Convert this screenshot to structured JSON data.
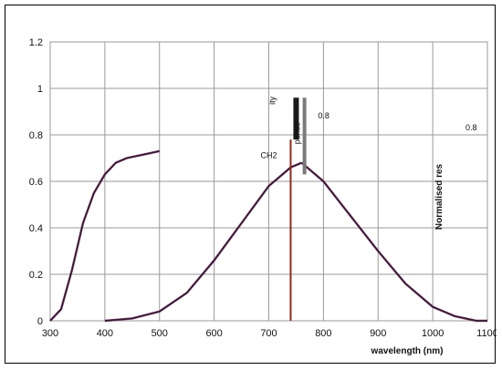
{
  "chart_data": {
    "type": "line",
    "title": "",
    "xlabel": "wavelength (nm)",
    "ylabel_right": "Normalised res",
    "ylim": [
      0,
      1.2
    ],
    "xlim": [
      300,
      1100
    ],
    "y_ticks": [
      "0",
      "0.2",
      "0.4",
      "0.6",
      "0.8",
      "1",
      "1.2"
    ],
    "x_ticks": [
      "300",
      "400",
      "500",
      "600",
      "700",
      "800",
      "900",
      "1000",
      "1100"
    ],
    "grid": true,
    "annotations": {
      "channel": "CH2",
      "ity": "ity",
      "ponse": "ponse",
      "small_value": "0.8",
      "right_tick": "0.8"
    },
    "colors": {
      "curve": "#222222",
      "curve_outline": "#7a2a6a",
      "marker_line": "#8b2a1f",
      "grid": "#9a9a9a",
      "legend_bar": "#1a1a1a",
      "legend_bar2": "#7a7a7a"
    },
    "series": [
      {
        "x": [
          300,
          320,
          340,
          360,
          380,
          400,
          420,
          440,
          460,
          480,
          500
        ],
        "values": [
          0.0,
          0.05,
          0.22,
          0.42,
          0.55,
          0.63,
          0.68,
          0.7,
          0.71,
          0.72,
          0.73
        ]
      },
      {
        "x": [
          400,
          450,
          500,
          550,
          600,
          650,
          700,
          720,
          740,
          760
        ],
        "values": [
          0.0,
          0.01,
          0.04,
          0.12,
          0.26,
          0.42,
          0.58,
          0.62,
          0.66,
          0.68
        ]
      },
      {
        "x": [
          760,
          800,
          850,
          900,
          950,
          1000,
          1040,
          1080,
          1100
        ],
        "values": [
          0.68,
          0.6,
          0.45,
          0.3,
          0.16,
          0.06,
          0.02,
          0.0,
          0.0
        ]
      }
    ],
    "vertical_marker_x": 740
  }
}
